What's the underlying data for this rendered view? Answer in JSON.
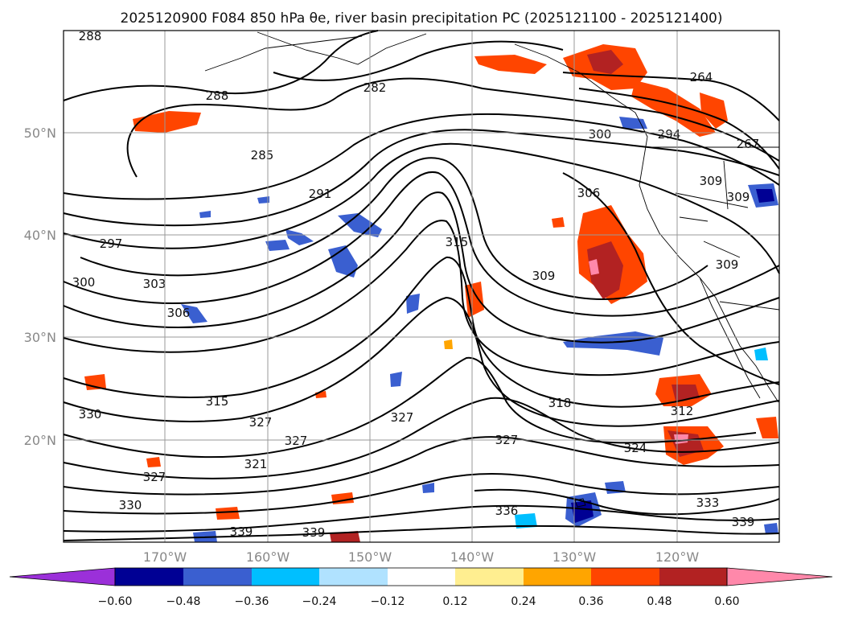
{
  "title": "2025120900 F084 850 hPa θe, river basin precipitation PC (2025121100 - 2025121400)",
  "axes": {
    "lon_labels": [
      "170°W",
      "160°W",
      "150°W",
      "140°W",
      "130°W",
      "120°W"
    ],
    "lat_labels": [
      "50°N",
      "40°N",
      "30°N",
      "20°N"
    ]
  },
  "colorbar": {
    "tick_labels": [
      "−0.60",
      "−0.48",
      "−0.36",
      "−0.24",
      "−0.12",
      "0.12",
      "0.24",
      "0.36",
      "0.48",
      "0.60"
    ],
    "colors": [
      "#9b30d9",
      "#000094",
      "#3a5fd0",
      "#00bfff",
      "#b0e2ff",
      "#ffffff",
      "#ffee90",
      "#ffa500",
      "#ff4500",
      "#b22222",
      "#ff88aa"
    ]
  },
  "contour_labels": [
    "288",
    "288",
    "282",
    "264",
    "285",
    "291",
    "306",
    "300",
    "294",
    "267",
    "309",
    "309",
    "297",
    "315",
    "300",
    "309",
    "303",
    "306",
    "309",
    "315",
    "318",
    "312",
    "330",
    "327",
    "327",
    "324",
    "327",
    "321",
    "327",
    "327",
    "330",
    "336",
    "333",
    "339",
    "339",
    "339"
  ],
  "precip_colors": {
    "orange": "#ff4500",
    "red": "#b22222",
    "pink": "#ff88aa",
    "yellow": "#ffee90",
    "light_orange": "#ffa500",
    "blue": "#3a5fd0",
    "dark_blue": "#000094",
    "cyan": "#00bfff"
  }
}
